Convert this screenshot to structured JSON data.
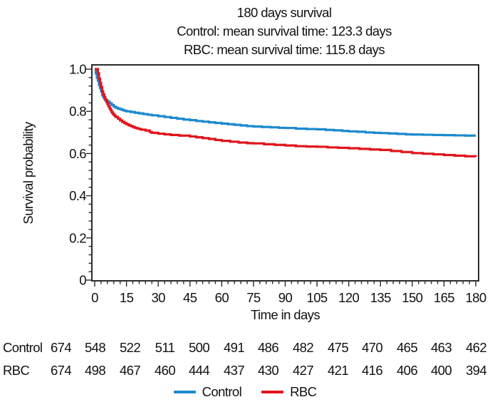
{
  "header": {
    "title": "180 days survival",
    "subtitle1": "Control: mean survival time: 123.3 days",
    "subtitle2": "RBC: mean survival time: 115.8 days"
  },
  "chart_data": {
    "type": "line",
    "subtype": "kaplan-meier-step",
    "title": "180 days survival",
    "xlabel": "Time in days",
    "ylabel": "Survival probability",
    "xlim": [
      0,
      180
    ],
    "ylim": [
      0,
      1.0
    ],
    "xticks": [
      0,
      15,
      30,
      45,
      60,
      75,
      90,
      105,
      120,
      135,
      150,
      165,
      180
    ],
    "yticks": [
      0,
      0.2,
      0.4,
      0.6,
      0.8,
      1.0
    ],
    "ytick_labels": [
      "0",
      "0.2",
      "0.4",
      "0.6",
      "0.8",
      "1.0"
    ],
    "x_minor_step": 3,
    "y_minor_step": 0.04,
    "grid": false,
    "legend_position": "bottom",
    "series": [
      {
        "name": "Control",
        "color": "#1d8acd",
        "points": [
          [
            0,
            1.0
          ],
          [
            0.5,
            0.98
          ],
          [
            1,
            0.96
          ],
          [
            1.5,
            0.945
          ],
          [
            2,
            0.925
          ],
          [
            2.5,
            0.91
          ],
          [
            3,
            0.895
          ],
          [
            3.5,
            0.878
          ],
          [
            4,
            0.868
          ],
          [
            4.5,
            0.86
          ],
          [
            5,
            0.853
          ],
          [
            6,
            0.846
          ],
          [
            7,
            0.838
          ],
          [
            8,
            0.83
          ],
          [
            9,
            0.822
          ],
          [
            10,
            0.817
          ],
          [
            11,
            0.813
          ],
          [
            12,
            0.81
          ],
          [
            13,
            0.806
          ],
          [
            14,
            0.803
          ],
          [
            15,
            0.8
          ],
          [
            17,
            0.797
          ],
          [
            19,
            0.793
          ],
          [
            21,
            0.79
          ],
          [
            23,
            0.787
          ],
          [
            25,
            0.784
          ],
          [
            27,
            0.781
          ],
          [
            30,
            0.777
          ],
          [
            33,
            0.773
          ],
          [
            36,
            0.769
          ],
          [
            39,
            0.765
          ],
          [
            42,
            0.761
          ],
          [
            45,
            0.758
          ],
          [
            48,
            0.754
          ],
          [
            51,
            0.751
          ],
          [
            54,
            0.748
          ],
          [
            57,
            0.745
          ],
          [
            60,
            0.742
          ],
          [
            63,
            0.739
          ],
          [
            66,
            0.736
          ],
          [
            69,
            0.733
          ],
          [
            72,
            0.73
          ],
          [
            75,
            0.728
          ],
          [
            79,
            0.726
          ],
          [
            83,
            0.724
          ],
          [
            87,
            0.722
          ],
          [
            90,
            0.721
          ],
          [
            95,
            0.718
          ],
          [
            100,
            0.716
          ],
          [
            105,
            0.715
          ],
          [
            109,
            0.712
          ],
          [
            113,
            0.71
          ],
          [
            117,
            0.707
          ],
          [
            120,
            0.705
          ],
          [
            124,
            0.703
          ],
          [
            128,
            0.7
          ],
          [
            132,
            0.698
          ],
          [
            135,
            0.697
          ],
          [
            139,
            0.695
          ],
          [
            143,
            0.693
          ],
          [
            147,
            0.691
          ],
          [
            150,
            0.69
          ],
          [
            155,
            0.689
          ],
          [
            160,
            0.688
          ],
          [
            165,
            0.687
          ],
          [
            170,
            0.686
          ],
          [
            175,
            0.685
          ],
          [
            180,
            0.685
          ]
        ]
      },
      {
        "name": "RBC",
        "color": "#e1151d",
        "points": [
          [
            0,
            1.0
          ],
          [
            1,
            1.0
          ],
          [
            1.5,
            0.98
          ],
          [
            2,
            0.955
          ],
          [
            2.5,
            0.935
          ],
          [
            3,
            0.915
          ],
          [
            3.5,
            0.895
          ],
          [
            4,
            0.88
          ],
          [
            4.5,
            0.868
          ],
          [
            5,
            0.856
          ],
          [
            5.5,
            0.845
          ],
          [
            6,
            0.835
          ],
          [
            6.5,
            0.824
          ],
          [
            7,
            0.814
          ],
          [
            7.5,
            0.805
          ],
          [
            8,
            0.796
          ],
          [
            8.5,
            0.789
          ],
          [
            9,
            0.783
          ],
          [
            9.5,
            0.778
          ],
          [
            10,
            0.773
          ],
          [
            11,
            0.765
          ],
          [
            12,
            0.757
          ],
          [
            13,
            0.75
          ],
          [
            14,
            0.744
          ],
          [
            15,
            0.739
          ],
          [
            16,
            0.734
          ],
          [
            17,
            0.73
          ],
          [
            18,
            0.726
          ],
          [
            19,
            0.722
          ],
          [
            20,
            0.719
          ],
          [
            21,
            0.716
          ],
          [
            22,
            0.713
          ],
          [
            24,
            0.709
          ],
          [
            26,
            0.702
          ],
          [
            27,
            0.698
          ],
          [
            30,
            0.694
          ],
          [
            33,
            0.691
          ],
          [
            36,
            0.688
          ],
          [
            40,
            0.685
          ],
          [
            45,
            0.681
          ],
          [
            48,
            0.677
          ],
          [
            51,
            0.673
          ],
          [
            54,
            0.669
          ],
          [
            57,
            0.664
          ],
          [
            60,
            0.66
          ],
          [
            64,
            0.656
          ],
          [
            68,
            0.652
          ],
          [
            72,
            0.649
          ],
          [
            75,
            0.648
          ],
          [
            80,
            0.644
          ],
          [
            85,
            0.641
          ],
          [
            90,
            0.638
          ],
          [
            95,
            0.635
          ],
          [
            100,
            0.633
          ],
          [
            105,
            0.632
          ],
          [
            110,
            0.629
          ],
          [
            115,
            0.627
          ],
          [
            120,
            0.625
          ],
          [
            125,
            0.622
          ],
          [
            130,
            0.619
          ],
          [
            135,
            0.617
          ],
          [
            140,
            0.612
          ],
          [
            145,
            0.607
          ],
          [
            150,
            0.602
          ],
          [
            155,
            0.599
          ],
          [
            160,
            0.596
          ],
          [
            165,
            0.593
          ],
          [
            170,
            0.59
          ],
          [
            175,
            0.587
          ],
          [
            180,
            0.585
          ]
        ]
      }
    ]
  },
  "risk_table": {
    "time_points": [
      0,
      15,
      30,
      45,
      60,
      75,
      90,
      105,
      120,
      135,
      150,
      165,
      180
    ],
    "rows": [
      {
        "label": "Control",
        "values": [
          "674",
          "548",
          "522",
          "511",
          "500",
          "491",
          "486",
          "482",
          "475",
          "470",
          "465",
          "463",
          "462"
        ]
      },
      {
        "label": "RBC",
        "values": [
          "674",
          "498",
          "467",
          "460",
          "444",
          "437",
          "430",
          "427",
          "421",
          "416",
          "406",
          "400",
          "394"
        ]
      }
    ]
  },
  "legend": {
    "items": [
      {
        "label": "Control",
        "color": "#1d8acd"
      },
      {
        "label": "RBC",
        "color": "#e1151d"
      }
    ]
  },
  "colors": {
    "axis": "#2b2b2b",
    "text": "#111111",
    "control": "#1d8acd",
    "rbc": "#e1151d"
  }
}
